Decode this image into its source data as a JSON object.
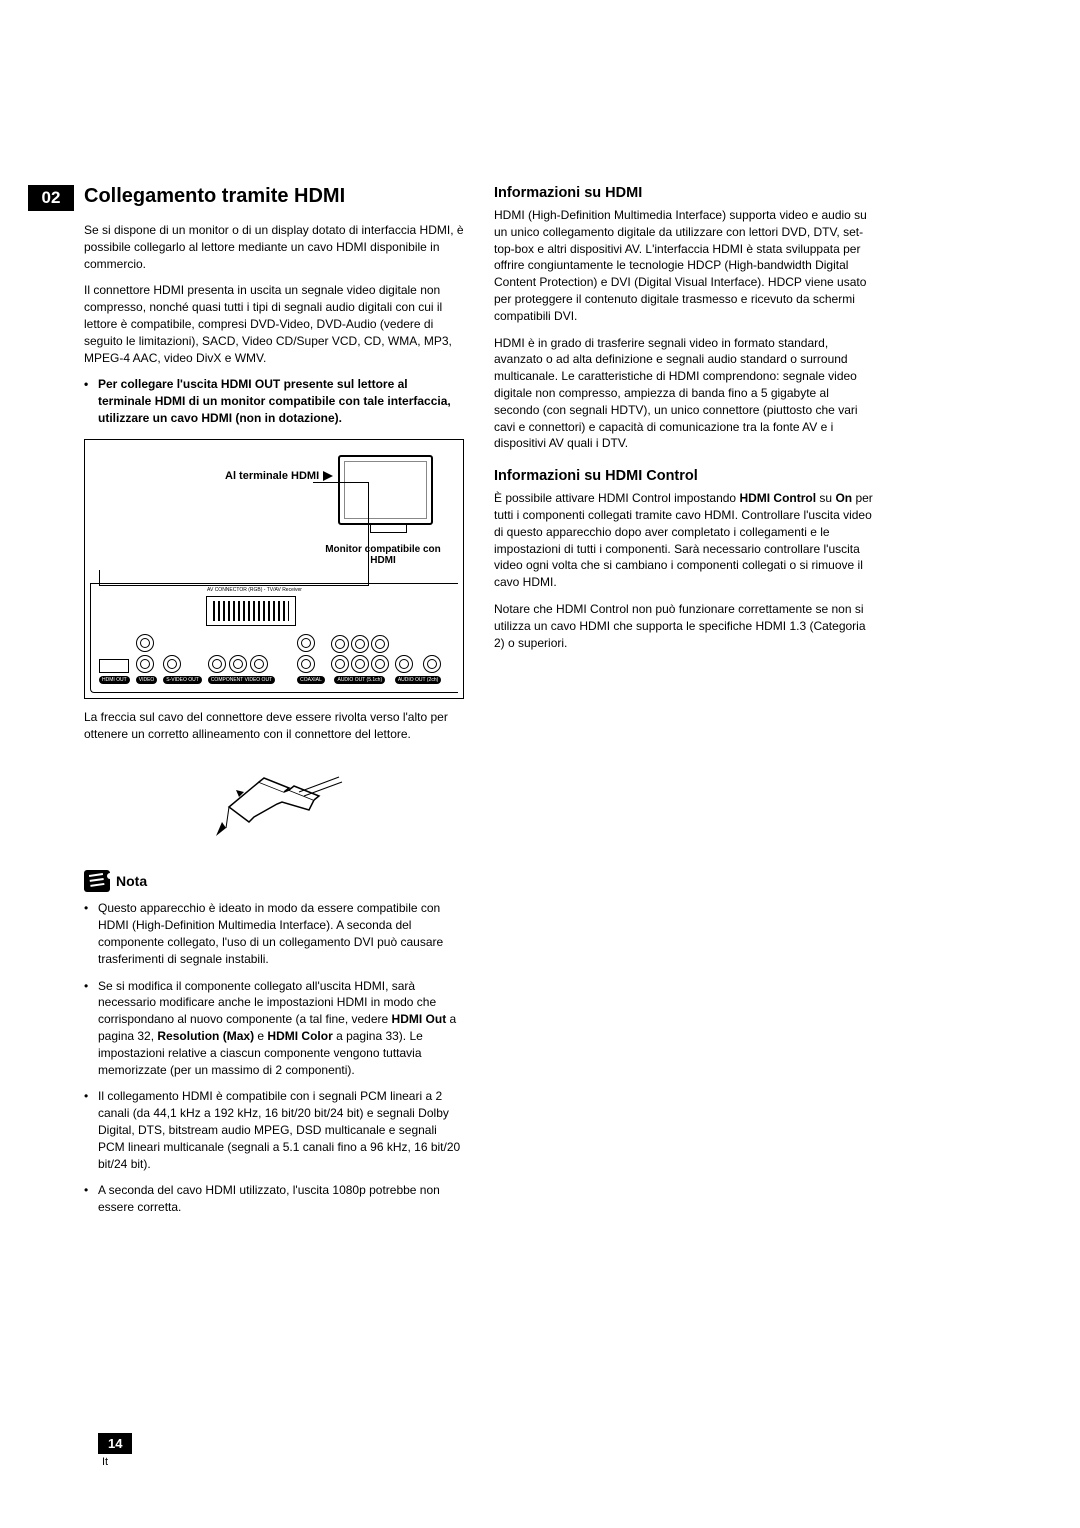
{
  "chapter_number": "02",
  "left": {
    "title": "Collegamento tramite HDMI",
    "p1": "Se si dispone di un monitor o di un display dotato di interfaccia HDMI, è possibile collegarlo al lettore mediante un cavo HDMI disponibile in commercio.",
    "p2": "Il connettore HDMI presenta in uscita un segnale video digitale non compresso, nonché quasi tutti i tipi di segnali audio digitali con cui il lettore è compatibile, compresi DVD-Video, DVD-Audio (vedere di seguito le limitazioni), SACD, Video  CD/Super VCD, CD, WMA, MP3, MPEG-4 AAC, video DivX e WMV.",
    "bullet1": "Per collegare l'uscita HDMI OUT presente sul lettore al terminale HDMI di un monitor compatibile con tale interfaccia, utilizzare un cavo HDMI (non in dotazione).",
    "diagram_label_terminal": "Al terminale HDMI",
    "diagram_label_monitor": "Monitor compatibile con HDMI",
    "diagram_scart_label": "AV CONNECTOR (RGB) - TV/AV Receiver",
    "diagram_bottom_labels": {
      "hdmi": "HDMI OUT",
      "video": "VIDEO",
      "svideo": "S-VIDEO OUT",
      "component": "COMPONENT VIDEO OUT",
      "coaxial": "COAXIAL",
      "audio51": "AUDIO OUT (5.1ch)",
      "audio2": "AUDIO OUT (2ch)"
    },
    "caption": "La freccia sul cavo del connettore deve essere rivolta verso l'alto per ottenere un corretto allineamento con il connettore del lettore.",
    "note_label": "Nota",
    "notes": [
      "Questo apparecchio è ideato in modo da essere compatibile con HDMI (High-Definition Multimedia Interface). A seconda del componente collegato, l'uso di un collegamento DVI può causare trasferimenti di segnale instabili.",
      "Se si modifica il componente collegato all'uscita HDMI, sarà necessario modificare anche le impostazioni HDMI in modo che corrispondano al nuovo componente (a tal fine, vedere <b>HDMI Out</b> a pagina 32, <b>Resolution (Max)</b> e <b>HDMI Color</b> a pagina 33). Le impostazioni relative a ciascun componente vengono tuttavia memorizzate (per un massimo di 2 componenti).",
      "Il collegamento HDMI è compatibile con i segnali PCM lineari a 2 canali (da 44,1 kHz a 192 kHz, 16 bit/20 bit/24 bit) e segnali Dolby Digital, DTS, bitstream audio MPEG, DSD multicanale e segnali PCM lineari multicanale (segnali a 5.1 canali fino a 96 kHz, 16 bit/20 bit/24 bit).",
      "A seconda del cavo HDMI utilizzato, l'uscita 1080p potrebbe non essere corretta."
    ]
  },
  "right": {
    "h1": "Informazioni su HDMI",
    "p1": "HDMI (High-Definition Multimedia Interface) supporta video e audio su un unico collegamento digitale da utilizzare con lettori DVD, DTV, set-top-box e altri dispositivi AV. L'interfaccia HDMI è stata sviluppata per offrire congiuntamente le tecnologie HDCP (High-bandwidth Digital Content Protection) e DVI (Digital Visual Interface). HDCP viene usato per proteggere il contenuto digitale trasmesso e ricevuto da schermi compatibili DVI.",
    "p2": "HDMI è in grado di trasferire segnali video in formato standard, avanzato o ad alta definizione e segnali audio standard o surround multicanale. Le caratteristiche di HDMI comprendono: segnale video digitale non compresso, ampiezza di banda fino a 5 gigabyte al secondo (con segnali HDTV), un unico connettore (piuttosto che vari cavi e connettori) e capacità di comunicazione tra la fonte AV e i dispositivi AV quali i DTV.",
    "h2": "Informazioni su HDMI Control",
    "p3_pre": "È possibile attivare HDMI Control impostando ",
    "p3_bold1": "HDMI Control",
    "p3_mid": " su ",
    "p3_bold2": "On",
    "p3_post": " per tutti i componenti collegati tramite cavo HDMI. Controllare l'uscita video di questo apparecchio dopo aver completato i collegamenti e le impostazioni di tutti i componenti. Sarà necessario controllare l'uscita video ogni volta che si cambiano i componenti collegati o si rimuove il cavo HDMI.",
    "p4": "Notare che HDMI Control non può funzionare correttamente se non si utilizza un cavo HDMI che supporta le specifiche HDMI 1.3 (Categoria 2) o superiori."
  },
  "footer": {
    "page": "14",
    "lang": "It"
  }
}
